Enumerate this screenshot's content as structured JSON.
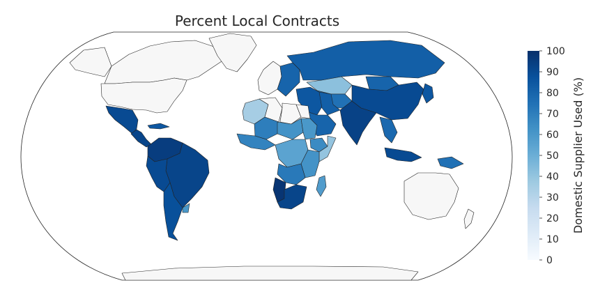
{
  "chart_data": {
    "type": "choropleth",
    "title": "Percent Local Contracts",
    "projection": "robinson",
    "colormap": "Blues",
    "no_data_color": "#f7f7f7",
    "colorbar": {
      "label": "Domestic Supplier Used (%)",
      "range": [
        0,
        100
      ],
      "ticks": [
        0,
        10,
        20,
        30,
        40,
        50,
        60,
        70,
        80,
        90,
        100
      ],
      "placement": "right"
    },
    "regions": [
      {
        "region": "Canada",
        "value": null
      },
      {
        "region": "Greenland",
        "value": null
      },
      {
        "region": "United States",
        "value": null
      },
      {
        "region": "Alaska",
        "value": null
      },
      {
        "region": "Mexico",
        "value": 90
      },
      {
        "region": "Central America",
        "value": 92
      },
      {
        "region": "Cuba",
        "value": 85
      },
      {
        "region": "Colombia / Venezuela",
        "value": 95
      },
      {
        "region": "Brazil",
        "value": 92
      },
      {
        "region": "Peru / Bolivia",
        "value": 90
      },
      {
        "region": "Argentina",
        "value": 88
      },
      {
        "region": "Uruguay",
        "value": 60
      },
      {
        "region": "Western Europe",
        "value": null
      },
      {
        "region": "Eastern Europe",
        "value": 80
      },
      {
        "region": "Russia",
        "value": 82
      },
      {
        "region": "Kazakhstan",
        "value": 42
      },
      {
        "region": "Central Asia",
        "value": 75
      },
      {
        "region": "Mongolia",
        "value": 80
      },
      {
        "region": "China",
        "value": 90
      },
      {
        "region": "Turkey / Middle East",
        "value": 85
      },
      {
        "region": "Iran",
        "value": 82
      },
      {
        "region": "Saudi Arabia",
        "value": 80
      },
      {
        "region": "India",
        "value": 93
      },
      {
        "region": "Southeast Asia",
        "value": 78
      },
      {
        "region": "Indonesia",
        "value": 90
      },
      {
        "region": "Papua New Guinea",
        "value": 75
      },
      {
        "region": "Japan",
        "value": 85
      },
      {
        "region": "Australia",
        "value": null
      },
      {
        "region": "New Zealand",
        "value": null
      },
      {
        "region": "Antarctica",
        "value": null
      },
      {
        "region": "Morocco / West Sahara",
        "value": 35
      },
      {
        "region": "Algeria",
        "value": null
      },
      {
        "region": "Libya",
        "value": null
      },
      {
        "region": "Egypt",
        "value": null
      },
      {
        "region": "Mali",
        "value": 70
      },
      {
        "region": "Niger / Chad",
        "value": 62
      },
      {
        "region": "Sudan",
        "value": 60
      },
      {
        "region": "West Africa",
        "value": 68
      },
      {
        "region": "Central Africa",
        "value": 55
      },
      {
        "region": "Ethiopia",
        "value": 65
      },
      {
        "region": "Somalia",
        "value": 40
      },
      {
        "region": "East Africa",
        "value": 62
      },
      {
        "region": "Angola / Zambia",
        "value": 72
      },
      {
        "region": "Namibia",
        "value": 98
      },
      {
        "region": "South Africa",
        "value": 92
      },
      {
        "region": "Madagascar",
        "value": 58
      }
    ]
  }
}
